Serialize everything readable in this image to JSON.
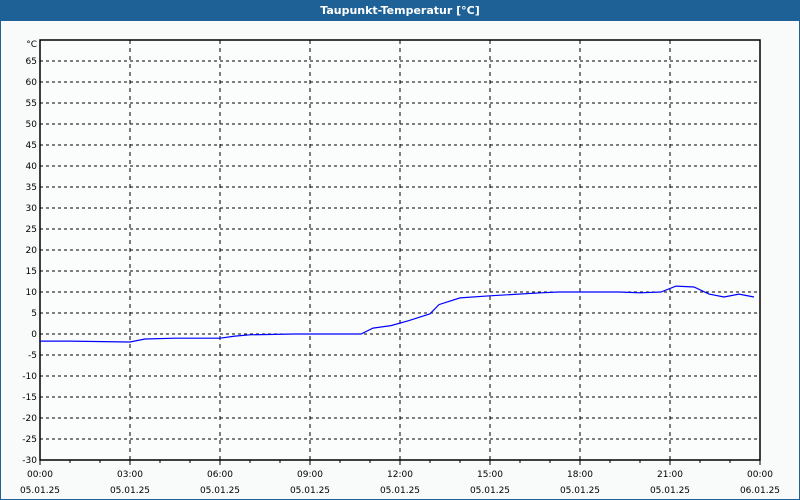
{
  "window": {
    "title": "Taupunkt-Temperatur [°C]"
  },
  "colors": {
    "titlebar": "#1e6196",
    "line": "#0000ff",
    "grid": "#000000"
  },
  "chart_data": {
    "type": "line",
    "title": "Taupunkt-Temperatur [°C]",
    "ylabel": "°C",
    "xlabel": "",
    "ylim": [
      -30,
      70
    ],
    "xlim_hours": [
      0,
      24
    ],
    "grid": true,
    "yticks": [
      65,
      60,
      55,
      50,
      45,
      40,
      35,
      30,
      25,
      20,
      15,
      10,
      5,
      0,
      -5,
      -10,
      -15,
      -20,
      -25,
      -30
    ],
    "xticks": [
      {
        "time": "00:00",
        "date": "05.01.25",
        "h": 0
      },
      {
        "time": "03:00",
        "date": "05.01.25",
        "h": 3
      },
      {
        "time": "06:00",
        "date": "05.01.25",
        "h": 6
      },
      {
        "time": "09:00",
        "date": "05.01.25",
        "h": 9
      },
      {
        "time": "12:00",
        "date": "05.01.25",
        "h": 12
      },
      {
        "time": "15:00",
        "date": "05.01.25",
        "h": 15
      },
      {
        "time": "18:00",
        "date": "05.01.25",
        "h": 18
      },
      {
        "time": "21:00",
        "date": "05.01.25",
        "h": 21
      },
      {
        "time": "00:00",
        "date": "06.01.25",
        "h": 24
      }
    ],
    "series": [
      {
        "name": "Taupunkt",
        "x_hours": [
          0,
          1,
          3,
          3.5,
          4.5,
          6,
          6.5,
          7,
          8.5,
          10.7,
          11.1,
          11.7,
          12.3,
          13,
          13.3,
          14,
          15,
          16.7,
          17.3,
          19.3,
          20,
          20.7,
          21.2,
          21.8,
          22.3,
          22.8,
          23.3,
          23.8
        ],
        "values": [
          -1.7,
          -1.7,
          -1.9,
          -1.2,
          -1,
          -1,
          -0.5,
          -0.2,
          0,
          0,
          1.4,
          2,
          3.2,
          4.8,
          7,
          8.6,
          9.1,
          9.8,
          10,
          10,
          9.8,
          10,
          11.4,
          11.2,
          9.5,
          8.8,
          9.5,
          8.8
        ]
      }
    ]
  }
}
